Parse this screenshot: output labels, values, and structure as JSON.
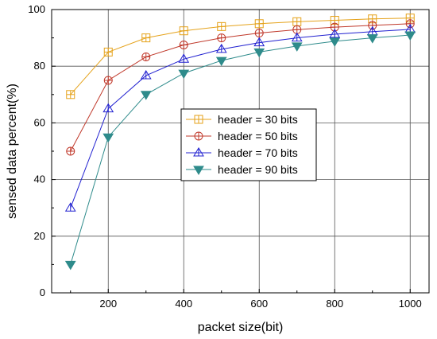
{
  "chart_data": {
    "type": "line",
    "title": "",
    "xlabel": "packet size(bit)",
    "ylabel": "sensed data percent(%)",
    "x": [
      100,
      200,
      300,
      400,
      500,
      600,
      700,
      800,
      900,
      1000
    ],
    "xlim": [
      50,
      1050
    ],
    "ylim": [
      0,
      100
    ],
    "xticks": [
      200,
      400,
      600,
      800,
      1000
    ],
    "yticks": [
      0,
      20,
      40,
      60,
      80,
      100
    ],
    "grid": true,
    "legend_position": "center-right",
    "series": [
      {
        "name": "header = 30 bits",
        "color": "#E5A21A",
        "marker": "square-plus",
        "values": [
          70,
          85,
          90,
          92.5,
          94,
          95,
          95.7,
          96.2,
          96.7,
          97
        ]
      },
      {
        "name": "header = 50 bits",
        "color": "#C0392B",
        "marker": "circle-plus",
        "values": [
          50,
          75,
          83.3,
          87.5,
          90,
          91.7,
          92.9,
          93.8,
          94.4,
          95
        ]
      },
      {
        "name": "header = 70 bits",
        "color": "#2020D0",
        "marker": "triangle-up",
        "values": [
          30,
          65,
          76.7,
          82.5,
          86,
          88.3,
          90,
          91.3,
          92.2,
          93
        ]
      },
      {
        "name": "header = 90 bits",
        "color": "#2E8B8B",
        "marker": "triangle-down",
        "values": [
          10,
          55,
          70,
          77.5,
          82,
          85,
          87.1,
          88.8,
          90,
          91
        ]
      }
    ]
  }
}
